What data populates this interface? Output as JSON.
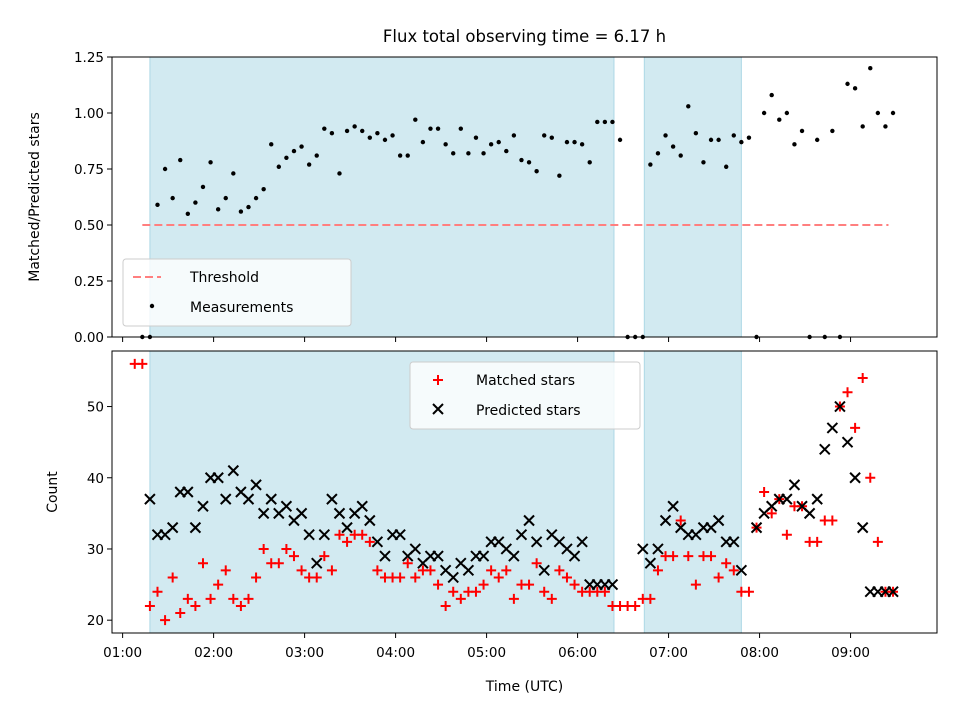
{
  "chart_data": [
    {
      "type": "scatter",
      "title": "Flux total observing time = 6.17 h",
      "xlabel": "",
      "ylabel": "Matched/Predicted stars",
      "xlim": [
        "00:53",
        "09:57"
      ],
      "ylim": [
        0,
        1.25
      ],
      "yticks": [
        0.0,
        0.25,
        0.5,
        0.75,
        1.0,
        1.25
      ],
      "ytick_labels": [
        "0.00",
        "0.25",
        "0.50",
        "0.75",
        "1.00",
        "1.25"
      ],
      "shaded_spans": [
        [
          "01:18",
          "06:24"
        ],
        [
          "06:44",
          "07:48"
        ]
      ],
      "shade_color": "#add8e6",
      "threshold": {
        "name": "Threshold",
        "y": 0.5,
        "x": [
          "01:13",
          "09:25"
        ],
        "color": "#ff7f7f"
      },
      "legend": {
        "entries": [
          "Threshold",
          "Measurements"
        ],
        "placement": "lower-left"
      },
      "series": [
        {
          "name": "Measurements",
          "color": "#000000",
          "x": [
            "01:13",
            "01:18",
            "01:23",
            "01:28",
            "01:33",
            "01:38",
            "01:43",
            "01:48",
            "01:53",
            "01:58",
            "02:03",
            "02:08",
            "02:13",
            "02:18",
            "02:23",
            "02:28",
            "02:33",
            "02:38",
            "02:43",
            "02:48",
            "02:53",
            "02:58",
            "03:03",
            "03:08",
            "03:13",
            "03:18",
            "03:23",
            "03:28",
            "03:33",
            "03:38",
            "03:43",
            "03:48",
            "03:53",
            "03:58",
            "04:03",
            "04:08",
            "04:13",
            "04:18",
            "04:23",
            "04:28",
            "04:33",
            "04:38",
            "04:43",
            "04:48",
            "04:53",
            "04:58",
            "05:03",
            "05:08",
            "05:13",
            "05:18",
            "05:23",
            "05:28",
            "05:33",
            "05:38",
            "05:43",
            "05:48",
            "05:53",
            "05:58",
            "06:03",
            "06:08",
            "06:13",
            "06:18",
            "06:23",
            "06:28",
            "06:33",
            "06:38",
            "06:43",
            "06:48",
            "06:53",
            "06:58",
            "07:03",
            "07:08",
            "07:13",
            "07:18",
            "07:23",
            "07:28",
            "07:33",
            "07:38",
            "07:43",
            "07:48",
            "07:53",
            "07:58",
            "08:03",
            "08:08",
            "08:13",
            "08:18",
            "08:23",
            "08:28",
            "08:33",
            "08:38",
            "08:43",
            "08:48",
            "08:53",
            "08:58",
            "09:03",
            "09:08",
            "09:13",
            "09:18",
            "09:23",
            "09:28"
          ],
          "y": [
            0.0,
            0.0,
            0.59,
            0.75,
            0.62,
            0.79,
            0.55,
            0.6,
            0.67,
            0.78,
            0.57,
            0.62,
            0.73,
            0.56,
            0.58,
            0.62,
            0.66,
            0.86,
            0.76,
            0.8,
            0.83,
            0.85,
            0.77,
            0.81,
            0.93,
            0.91,
            0.73,
            0.92,
            0.94,
            0.92,
            0.89,
            0.91,
            0.88,
            0.9,
            0.81,
            0.81,
            0.97,
            0.87,
            0.93,
            0.93,
            0.86,
            0.82,
            0.93,
            0.82,
            0.89,
            0.82,
            0.86,
            0.87,
            0.83,
            0.9,
            0.79,
            0.78,
            0.74,
            0.9,
            0.89,
            0.72,
            0.87,
            0.87,
            0.86,
            0.78,
            0.96,
            0.96,
            0.96,
            0.88,
            0.0,
            0.0,
            0.0,
            0.77,
            0.82,
            0.9,
            0.85,
            0.81,
            1.03,
            0.91,
            0.78,
            0.88,
            0.88,
            0.76,
            0.9,
            0.87,
            0.89,
            0.0,
            1.0,
            1.08,
            0.97,
            1.0,
            0.86,
            0.92,
            0.0,
            0.88,
            0.0,
            0.92,
            0.0,
            1.13,
            1.11,
            0.94,
            1.2,
            1.0,
            0.94,
            1.0
          ]
        }
      ]
    },
    {
      "type": "scatter",
      "title": "",
      "xlabel": "Time (UTC)",
      "ylabel": "Count",
      "xlim": [
        "00:53",
        "09:57"
      ],
      "ylim": [
        18.2,
        57.8
      ],
      "yticks": [
        20,
        30,
        40,
        50
      ],
      "ytick_labels": [
        "20",
        "30",
        "40",
        "50"
      ],
      "xtick_labels": [
        "01:00",
        "02:00",
        "03:00",
        "04:00",
        "05:00",
        "06:00",
        "07:00",
        "08:00",
        "09:00"
      ],
      "shaded_spans": [
        [
          "01:18",
          "06:24"
        ],
        [
          "06:44",
          "07:48"
        ]
      ],
      "shade_color": "#add8e6",
      "legend": {
        "entries": [
          "Matched stars",
          "Predicted stars"
        ],
        "placement": "upper-center"
      },
      "series": [
        {
          "name": "Matched stars",
          "marker": "plus",
          "color": "#ff0000",
          "x": [
            "01:08",
            "01:13",
            "01:18",
            "01:23",
            "01:28",
            "01:33",
            "01:38",
            "01:43",
            "01:48",
            "01:53",
            "01:58",
            "02:03",
            "02:08",
            "02:13",
            "02:18",
            "02:23",
            "02:28",
            "02:33",
            "02:38",
            "02:43",
            "02:48",
            "02:53",
            "02:58",
            "03:03",
            "03:08",
            "03:13",
            "03:18",
            "03:23",
            "03:28",
            "03:33",
            "03:38",
            "03:43",
            "03:48",
            "03:53",
            "03:58",
            "04:03",
            "04:08",
            "04:13",
            "04:18",
            "04:23",
            "04:28",
            "04:33",
            "04:38",
            "04:43",
            "04:48",
            "04:53",
            "04:58",
            "05:03",
            "05:08",
            "05:13",
            "05:18",
            "05:23",
            "05:28",
            "05:33",
            "05:38",
            "05:43",
            "05:48",
            "05:53",
            "05:58",
            "06:03",
            "06:08",
            "06:13",
            "06:18",
            "06:23",
            "06:28",
            "06:33",
            "06:38",
            "06:43",
            "06:48",
            "06:53",
            "06:58",
            "07:03",
            "07:08",
            "07:13",
            "07:18",
            "07:23",
            "07:28",
            "07:33",
            "07:38",
            "07:43",
            "07:48",
            "07:53",
            "07:58",
            "08:03",
            "08:08",
            "08:13",
            "08:18",
            "08:23",
            "08:28",
            "08:33",
            "08:38",
            "08:43",
            "08:48",
            "08:53",
            "08:58",
            "09:03",
            "09:08",
            "09:13",
            "09:18",
            "09:23",
            "09:28"
          ],
          "y": [
            56,
            56,
            22,
            24,
            20,
            26,
            21,
            23,
            22,
            28,
            23,
            25,
            27,
            23,
            22,
            23,
            26,
            30,
            28,
            28,
            30,
            29,
            27,
            26,
            26,
            29,
            27,
            32,
            31,
            32,
            32,
            31,
            27,
            26,
            26,
            26,
            28,
            26,
            27,
            27,
            25,
            22,
            24,
            23,
            24,
            24,
            25,
            27,
            26,
            27,
            23,
            25,
            25,
            28,
            24,
            23,
            27,
            26,
            25,
            24,
            24,
            24,
            24,
            22,
            22,
            22,
            22,
            23,
            23,
            27,
            29,
            29,
            34,
            29,
            25,
            29,
            29,
            26,
            28,
            27,
            24,
            24,
            33,
            38,
            35,
            37,
            32,
            36,
            36,
            31,
            31,
            34,
            34,
            50,
            52,
            47,
            54,
            40,
            31,
            24,
            24
          ]
        },
        {
          "name": "Predicted stars",
          "marker": "x",
          "color": "#000000",
          "x": [
            "01:18",
            "01:23",
            "01:28",
            "01:33",
            "01:38",
            "01:43",
            "01:48",
            "01:53",
            "01:58",
            "02:03",
            "02:08",
            "02:13",
            "02:18",
            "02:23",
            "02:28",
            "02:33",
            "02:38",
            "02:43",
            "02:48",
            "02:53",
            "02:58",
            "03:03",
            "03:08",
            "03:13",
            "03:18",
            "03:23",
            "03:28",
            "03:33",
            "03:38",
            "03:43",
            "03:48",
            "03:53",
            "03:58",
            "04:03",
            "04:08",
            "04:13",
            "04:18",
            "04:23",
            "04:28",
            "04:33",
            "04:38",
            "04:43",
            "04:48",
            "04:53",
            "04:58",
            "05:03",
            "05:08",
            "05:13",
            "05:18",
            "05:23",
            "05:28",
            "05:33",
            "05:38",
            "05:43",
            "05:48",
            "05:53",
            "05:58",
            "06:03",
            "06:08",
            "06:13",
            "06:18",
            "06:23",
            "06:43",
            "06:48",
            "06:53",
            "06:58",
            "07:03",
            "07:08",
            "07:13",
            "07:18",
            "07:23",
            "07:28",
            "07:33",
            "07:38",
            "07:43",
            "07:48",
            "07:58",
            "08:03",
            "08:08",
            "08:13",
            "08:18",
            "08:23",
            "08:28",
            "08:33",
            "08:38",
            "08:43",
            "08:48",
            "08:53",
            "08:58",
            "09:03",
            "09:08",
            "09:13",
            "09:18",
            "09:23",
            "09:28"
          ],
          "y": [
            37,
            32,
            32,
            33,
            38,
            38,
            33,
            36,
            40,
            40,
            37,
            41,
            38,
            37,
            39,
            35,
            37,
            35,
            36,
            34,
            35,
            32,
            28,
            32,
            37,
            35,
            33,
            35,
            36,
            34,
            31,
            29,
            32,
            32,
            29,
            30,
            28,
            29,
            29,
            27,
            26,
            28,
            27,
            29,
            29,
            31,
            31,
            30,
            29,
            32,
            34,
            31,
            27,
            32,
            31,
            30,
            29,
            31,
            25,
            25,
            25,
            25,
            30,
            28,
            30,
            34,
            36,
            33,
            32,
            32,
            33,
            33,
            34,
            31,
            31,
            27,
            33,
            35,
            36,
            37,
            37,
            39,
            36,
            35,
            37,
            44,
            47,
            50,
            45,
            40,
            33,
            24,
            24,
            24,
            24
          ]
        }
      ]
    }
  ]
}
